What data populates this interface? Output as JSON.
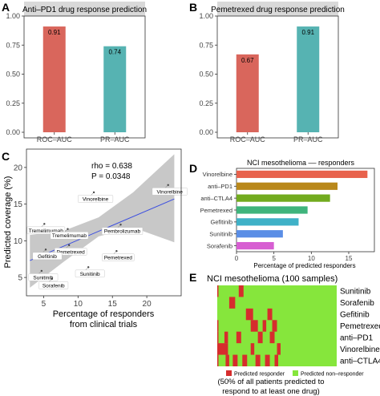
{
  "panels": {
    "A": {
      "letter": "A",
      "title": "Anti–PD1 drug response prediction",
      "chart_data": {
        "type": "bar",
        "categories": [
          "ROC–AUC",
          "PR–AUC"
        ],
        "values": [
          0.91,
          0.74
        ],
        "labels": [
          "0.91",
          "0.74"
        ],
        "colors": [
          "#d9665c",
          "#56b3b2"
        ],
        "yticks": [
          0.0,
          0.25,
          0.5,
          0.75,
          1.0
        ],
        "ytick_labels": [
          "0.00",
          "0.25",
          "0.50",
          "0.75",
          "1.00"
        ],
        "ylim": [
          0,
          1
        ]
      }
    },
    "B": {
      "letter": "B",
      "title": "Pemetrexed drug response prediction",
      "chart_data": {
        "type": "bar",
        "categories": [
          "ROC–AUC",
          "PR–AUC"
        ],
        "values": [
          0.67,
          0.91
        ],
        "labels": [
          "0.67",
          "0.91"
        ],
        "colors": [
          "#d9665c",
          "#56b3b2"
        ],
        "yticks": [
          0.0,
          0.25,
          0.5,
          0.75,
          1.0
        ],
        "ytick_labels": [
          "0.00",
          "0.25",
          "0.50",
          "0.75",
          "1.00"
        ],
        "ylim": [
          0,
          1
        ]
      }
    },
    "C": {
      "letter": "C",
      "ylabel": "Predicted coverage (%)",
      "xlabel_line1": "Percentage of responders",
      "xlabel_line2": "from clinical trials",
      "rho_label": "rho = 0.638",
      "p_label": "P = 0.0348",
      "chart_data": {
        "type": "scatter",
        "xlim": [
          2.5,
          25
        ],
        "ylim": [
          2.5,
          22.5
        ],
        "xticks": [
          5,
          10,
          15,
          20
        ],
        "yticks": [
          5,
          10,
          15,
          20
        ],
        "fit_line": [
          [
            3,
            7.3
          ],
          [
            24,
            15.7
          ]
        ],
        "band_upper": [
          [
            3,
            10.8
          ],
          [
            8,
            11.4
          ],
          [
            13,
            13.2
          ],
          [
            18,
            16.6
          ],
          [
            24,
            21.8
          ]
        ],
        "band_lower": [
          [
            3,
            3.6
          ],
          [
            8,
            7.2
          ],
          [
            13,
            10.6
          ],
          [
            18,
            11.8
          ],
          [
            24,
            9.8
          ]
        ],
        "points": [
          {
            "name": "Vinorelbine",
            "x": 12.3,
            "y": 16.6
          },
          {
            "name": "Vinorelbine",
            "x": 23.1,
            "y": 17.6
          },
          {
            "name": "Tremelimumab",
            "x": 5.1,
            "y": 12.3
          },
          {
            "name": "Tremelimumab",
            "x": 8.5,
            "y": 11.6
          },
          {
            "name": "Pembrolizumab",
            "x": 16.2,
            "y": 12.2
          },
          {
            "name": "Pemetrexed",
            "x": 8.7,
            "y": 9.4
          },
          {
            "name": "Gefitinib",
            "x": 5.3,
            "y": 8.8
          },
          {
            "name": "Pemetrexed",
            "x": 15.6,
            "y": 8.6
          },
          {
            "name": "Sunitinib",
            "x": 4.7,
            "y": 5.9
          },
          {
            "name": "Sunitinib",
            "x": 11.5,
            "y": 6.4
          },
          {
            "name": "Sorafenib",
            "x": 6.2,
            "y": 4.8
          }
        ]
      }
    },
    "D": {
      "letter": "D",
      "title": "NCI mesothelioma –– responders",
      "xlabel": "Percentage of predicted responders",
      "chart_data": {
        "type": "bar",
        "orientation": "horizontal",
        "categories": [
          "Vinorelbine",
          "anti–PD1",
          "anti–CTLA4",
          "Pemetrexed",
          "Gefitinib",
          "Sunitinib",
          "Sorafenib"
        ],
        "values": [
          17.5,
          13.5,
          12.5,
          9.5,
          8.3,
          6.2,
          5.0
        ],
        "colors": [
          "#e8624c",
          "#b9881b",
          "#72ab1f",
          "#3fb47c",
          "#3fb1c7",
          "#5a8ee6",
          "#d75ed2"
        ],
        "xlim": [
          0,
          18
        ],
        "xticks": [
          0,
          5,
          10,
          15
        ],
        "xtick_labels": [
          "0",
          "5",
          "10",
          "15"
        ]
      }
    },
    "E": {
      "letter": "E",
      "title": "NCI mesothelioma (100 samples)",
      "legend_responder": "Predicted responder",
      "legend_nonresponder": "Predicted non–responder",
      "caption_line1": "(50% of all patients predicted to",
      "caption_line2": "respond to at least one drug)",
      "chart_data": {
        "type": "heatmap",
        "n_samples": 100,
        "rows": [
          "Sunitinib",
          "Sorafenib",
          "Gefitinib",
          "Pemetrexed",
          "anti–PD1",
          "Vinorelbine",
          "anti–CTLA4"
        ],
        "colors": {
          "responder": "#d62d2d",
          "nonresponder": "#86e63c"
        },
        "responder_ranges": [
          [
            [
              0,
              1
            ],
            [
              18,
              22
            ]
          ],
          [
            [
              10,
              15
            ]
          ],
          [
            [
              24,
              30
            ],
            [
              42,
              46
            ]
          ],
          [
            [
              0,
              1
            ],
            [
              28,
              34
            ],
            [
              38,
              41
            ],
            [
              46,
              50
            ]
          ],
          [
            [
              0,
              1
            ],
            [
              6,
              9
            ],
            [
              16,
              20
            ],
            [
              34,
              38
            ],
            [
              44,
              48
            ]
          ],
          [
            [
              0,
              9
            ],
            [
              28,
              31
            ],
            [
              50,
              53
            ]
          ],
          [
            [
              0,
              1
            ],
            [
              7,
              10
            ],
            [
              13,
              17
            ],
            [
              21,
              25
            ],
            [
              32,
              36
            ],
            [
              40,
              44
            ],
            [
              48,
              51
            ]
          ]
        ]
      }
    }
  }
}
